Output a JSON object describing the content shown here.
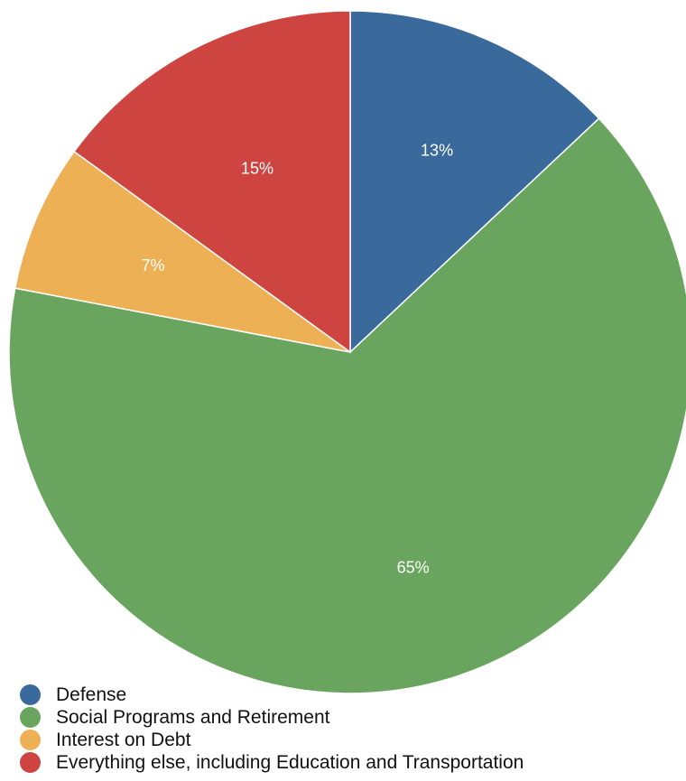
{
  "chart_data": {
    "type": "pie",
    "start_angle_deg": 0,
    "direction": "clockwise",
    "slices": [
      {
        "label": "Defense",
        "value": 13,
        "display": "13%",
        "color": "#3a6a9c"
      },
      {
        "label": "Social Programs and Retirement",
        "value": 65,
        "display": "65%",
        "color": "#69a55e"
      },
      {
        "label": "Interest on Debt",
        "value": 7,
        "display": "7%",
        "color": "#eeb055"
      },
      {
        "label": "Everything else, including Education and Transportation",
        "value": 15,
        "display": "15%",
        "color": "#cd4441"
      }
    ],
    "legend": {
      "placement": "bottom-left",
      "entries": [
        "Defense",
        "Social Programs and Retirement",
        "Interest on Debt",
        "Everything else, including Education and Transportation"
      ]
    }
  }
}
